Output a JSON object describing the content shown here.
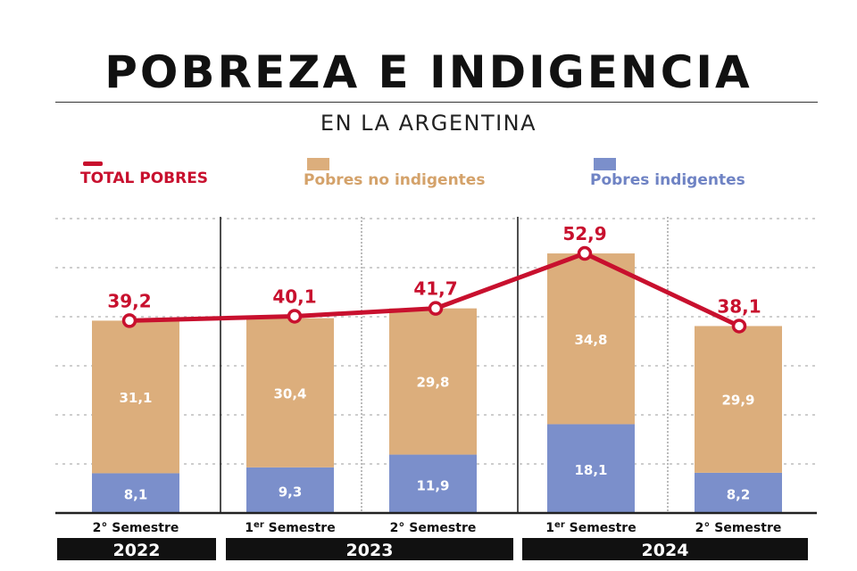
{
  "title": "POBREZA E INDIGENCIA",
  "subtitle": "EN LA ARGENTINA",
  "legend": {
    "total": "TOTAL POBRES",
    "no_indigentes": "Pobres no indigentes",
    "indigentes": "Pobres indigentes"
  },
  "colors": {
    "total": "#c8102e",
    "no_indigentes": "#dcae7c",
    "indigentes": "#7b8fcb",
    "year_bar": "#111111",
    "grid": "#bdbdbd"
  },
  "chart_data": {
    "type": "bar",
    "stacked": true,
    "categories": [
      {
        "pre": "2°",
        "sup": "",
        "post": " Semestre"
      },
      {
        "pre": "1",
        "sup": "er",
        "post": " Semestre"
      },
      {
        "pre": "2°",
        "sup": "",
        "post": " Semestre"
      },
      {
        "pre": "1",
        "sup": "er",
        "post": " Semestre"
      },
      {
        "pre": "2°",
        "sup": "",
        "post": " Semestre"
      }
    ],
    "years": [
      {
        "label": "2022",
        "span": [
          0,
          0
        ]
      },
      {
        "label": "2023",
        "span": [
          1,
          2
        ]
      },
      {
        "label": "2024",
        "span": [
          3,
          4
        ]
      }
    ],
    "series": [
      {
        "name": "Pobres indigentes",
        "values": [
          8.1,
          9.3,
          11.9,
          18.1,
          8.2
        ],
        "labels": [
          "8,1",
          "9,3",
          "11,9",
          "18,1",
          "8,2"
        ]
      },
      {
        "name": "Pobres no indigentes",
        "values": [
          31.1,
          30.4,
          29.8,
          34.8,
          29.9
        ],
        "labels": [
          "31,1",
          "30,4",
          "29,8",
          "34,8",
          "29,9"
        ]
      }
    ],
    "line": {
      "name": "TOTAL POBRES",
      "values": [
        39.2,
        40.1,
        41.7,
        52.9,
        38.1
      ],
      "labels": [
        "39,2",
        "40,1",
        "41,7",
        "52,9",
        "38,1"
      ]
    },
    "ylim": [
      0,
      60
    ],
    "grid": true
  }
}
